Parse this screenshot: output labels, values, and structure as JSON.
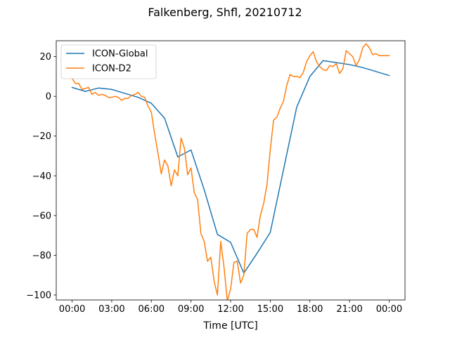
{
  "chart_data": {
    "type": "line",
    "title": "Falkenberg, Shfl, 20210712",
    "xlabel": "Time [UTC]",
    "ylabel": "",
    "x_unit": "hours",
    "xlim": [
      -1.2,
      25.2
    ],
    "ylim": [
      -102.5,
      28
    ],
    "x_ticks": [
      {
        "value": 0,
        "label": "00:00"
      },
      {
        "value": 3,
        "label": "03:00"
      },
      {
        "value": 6,
        "label": "06:00"
      },
      {
        "value": 9,
        "label": "09:00"
      },
      {
        "value": 12,
        "label": "12:00"
      },
      {
        "value": 15,
        "label": "15:00"
      },
      {
        "value": 18,
        "label": "18:00"
      },
      {
        "value": 21,
        "label": "21:00"
      },
      {
        "value": 24,
        "label": "00:00"
      }
    ],
    "y_ticks": [
      {
        "value": -100,
        "label": "−100"
      },
      {
        "value": -80,
        "label": "−80"
      },
      {
        "value": -60,
        "label": "−60"
      },
      {
        "value": -40,
        "label": "−40"
      },
      {
        "value": -20,
        "label": "−20"
      },
      {
        "value": 0,
        "label": "0"
      },
      {
        "value": 20,
        "label": "20"
      }
    ],
    "grid": false,
    "legend_position": "top-left",
    "series": [
      {
        "name": "ICON-Global",
        "color": "#1f77b4",
        "x": [
          0,
          1,
          2,
          3,
          4,
          5,
          6,
          7,
          8,
          9,
          10,
          11,
          12,
          13,
          14,
          15,
          16,
          17,
          18,
          19,
          20,
          21,
          22,
          23,
          24
        ],
        "y": [
          4.5,
          2.5,
          4.2,
          3.5,
          1.5,
          -0.5,
          -3.5,
          -11,
          -30.5,
          -27,
          -47,
          -69.5,
          -73.5,
          -89,
          -79,
          -68.5,
          -37,
          -5.5,
          10,
          18,
          17,
          16,
          14.5,
          12.5,
          10.5
        ]
      },
      {
        "name": "ICON-D2",
        "color": "#ff7f0e",
        "x": [
          0,
          0.25,
          0.5,
          0.75,
          1,
          1.25,
          1.5,
          1.75,
          2,
          2.25,
          2.5,
          2.75,
          3,
          3.25,
          3.5,
          3.75,
          4,
          4.25,
          4.5,
          4.75,
          5,
          5.25,
          5.5,
          5.75,
          6,
          6.25,
          6.5,
          6.75,
          7,
          7.25,
          7.5,
          7.75,
          8,
          8.25,
          8.5,
          8.75,
          9,
          9.25,
          9.5,
          9.75,
          10,
          10.25,
          10.5,
          10.75,
          11,
          11.25,
          11.5,
          11.75,
          12,
          12.25,
          12.5,
          12.75,
          13,
          13.25,
          13.5,
          13.75,
          14,
          14.25,
          14.5,
          14.75,
          15,
          15.25,
          15.5,
          15.75,
          16,
          16.25,
          16.5,
          16.75,
          17,
          17.25,
          17.5,
          17.75,
          18,
          18.25,
          18.5,
          18.75,
          19,
          19.25,
          19.5,
          19.75,
          20,
          20.25,
          20.5,
          20.75,
          21,
          21.25,
          21.5,
          21.75,
          22,
          22.25,
          22.5,
          22.75,
          23,
          23.25,
          23.5,
          23.75,
          24
        ],
        "y": [
          9,
          6.5,
          6.5,
          3.5,
          4,
          4.5,
          1,
          2,
          0.5,
          1,
          0.5,
          -0.5,
          -0.5,
          0,
          -0.5,
          -2,
          -1,
          -1,
          0.5,
          1,
          2,
          0,
          -0.5,
          -5,
          -8,
          -19,
          -28.5,
          -39,
          -32,
          -35,
          -45,
          -37,
          -40,
          -21,
          -26,
          -39.5,
          -36,
          -48.5,
          -52,
          -69,
          -73,
          -83,
          -81,
          -93,
          -100,
          -73,
          -86,
          -103,
          -97,
          -83.5,
          -83,
          -94,
          -90,
          -69,
          -67,
          -67,
          -71,
          -60,
          -54,
          -44.5,
          -27,
          -12,
          -10.5,
          -6,
          -2.5,
          5.5,
          11,
          10,
          10,
          9.5,
          12,
          17.5,
          20.5,
          22.5,
          17.5,
          15,
          13.5,
          13,
          15.5,
          15,
          16.5,
          11.5,
          14,
          23,
          21.5,
          20,
          15.5,
          18.5,
          24.5,
          26.5,
          24.5,
          21,
          21.5,
          20.5,
          20.5,
          20.5,
          20.5
        ]
      }
    ]
  }
}
